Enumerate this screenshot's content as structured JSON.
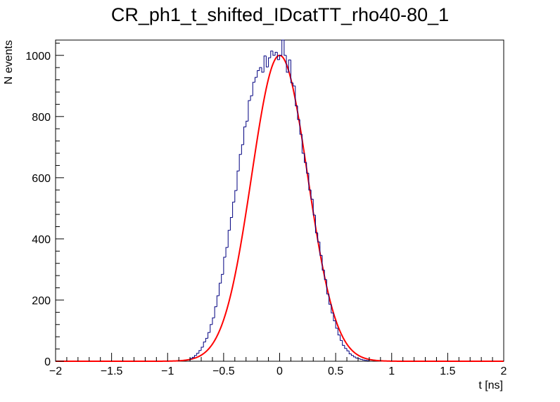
{
  "chart_data": {
    "type": "bar",
    "title": "CR_ph1_t_shifted_IDcatTT_rho40-80_1",
    "xlabel": "t [ns]",
    "ylabel": "N events",
    "xlim": [
      -2,
      2
    ],
    "ylim": [
      0,
      1050
    ],
    "x_ticks": [
      -2,
      -1.5,
      -1,
      -0.5,
      0,
      0.5,
      1,
      1.5,
      2
    ],
    "x_tick_labels": [
      "−2",
      "−1.5",
      "−1",
      "−0.5",
      "0",
      "0.5",
      "1",
      "1.5",
      "2"
    ],
    "y_ticks": [
      0,
      200,
      400,
      600,
      800,
      1000
    ],
    "y_tick_labels": [
      "0",
      "200",
      "400",
      "600",
      "800",
      "1000"
    ],
    "histogram": {
      "name": "data",
      "color": "#000080",
      "bin_width": 0.02,
      "bin_low_edges": [
        -0.8,
        -0.78,
        -0.76,
        -0.74,
        -0.72,
        -0.7,
        -0.68,
        -0.66,
        -0.64,
        -0.62,
        -0.6,
        -0.58,
        -0.56,
        -0.54,
        -0.52,
        -0.5,
        -0.48,
        -0.46,
        -0.44,
        -0.42,
        -0.4,
        -0.38,
        -0.36,
        -0.34,
        -0.32,
        -0.3,
        -0.28,
        -0.26,
        -0.24,
        -0.22,
        -0.2,
        -0.18,
        -0.16,
        -0.14,
        -0.12,
        -0.1,
        -0.08,
        -0.06,
        -0.04,
        -0.02,
        0,
        0.02,
        0.04,
        0.06,
        0.08,
        0.1,
        0.12,
        0.14,
        0.16,
        0.18,
        0.2,
        0.22,
        0.24,
        0.26,
        0.28,
        0.3,
        0.32,
        0.34,
        0.36,
        0.38,
        0.4,
        0.42,
        0.44,
        0.46,
        0.48,
        0.5,
        0.52,
        0.54,
        0.56,
        0.58,
        0.6,
        0.62,
        0.64,
        0.66,
        0.68,
        0.7,
        0.72,
        0.74,
        0.76,
        0.78
      ],
      "values": [
        9,
        13,
        19,
        26,
        35,
        46,
        63,
        75,
        94,
        120,
        142,
        178,
        214,
        255,
        284,
        340,
        372,
        428,
        470,
        520,
        558,
        622,
        676,
        708,
        766,
        785,
        852,
        868,
        912,
        928,
        950,
        960,
        945,
        998,
        962,
        992,
        1014,
        1000,
        1010,
        986,
        1000,
        1050,
        1000,
        945,
        985,
        910,
        900,
        835,
        790,
        742,
        680,
        650,
        615,
        560,
        530,
        478,
        420,
        390,
        346,
        298,
        267,
        220,
        186,
        158,
        132,
        108,
        86,
        68,
        52,
        42,
        34,
        24,
        19,
        14,
        10,
        8,
        6,
        4,
        3,
        2
      ]
    },
    "fit": {
      "name": "fit",
      "color": "#ff0000",
      "function": "gaussian",
      "amplitude": 1000,
      "mean": 0,
      "sigma": 0.25
    }
  }
}
